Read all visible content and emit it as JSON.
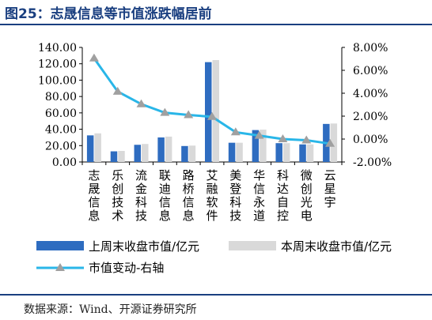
{
  "figure": {
    "title": "图25：志晟信息等市值涨跌幅居前",
    "source": "数据来源：Wind、开源证券研究所"
  },
  "colors": {
    "title": "#1a3f80",
    "bar_last_week": "#2e6cc0",
    "bar_this_week": "#d9d9d9",
    "line": "#29b6e8",
    "marker": "#a0a0a0"
  },
  "chart_data": {
    "type": "bar",
    "categories": [
      "志晟信息",
      "乐创技术",
      "流金科技",
      "联迪信息",
      "路桥信息",
      "艾融软件",
      "美登科技",
      "华信永道",
      "科达自控",
      "微创光电",
      "云星宇"
    ],
    "series": [
      {
        "name": "上周末收盘市值/亿元",
        "type": "bar",
        "axis": "left",
        "color": "#2e6cc0",
        "values": [
          32.5,
          13.0,
          21.0,
          30.0,
          19.5,
          122.0,
          23.5,
          39.0,
          23.0,
          21.5,
          46.5
        ]
      },
      {
        "name": "本周末收盘市值/亿元",
        "type": "bar",
        "axis": "left",
        "color": "#d9d9d9",
        "values": [
          35.0,
          13.5,
          22.0,
          31.0,
          20.0,
          124.5,
          23.5,
          39.5,
          23.0,
          21.5,
          47.0
        ]
      },
      {
        "name": "市值变动-右轴",
        "type": "line",
        "axis": "right",
        "color": "#29b6e8",
        "values": [
          7.05,
          4.15,
          3.05,
          2.3,
          2.1,
          1.95,
          0.6,
          0.3,
          0.0,
          -0.1,
          -0.4
        ]
      }
    ],
    "y_left": {
      "min": 0,
      "max": 140,
      "step": 20,
      "ticks": [
        "0.00",
        "20.00",
        "40.00",
        "60.00",
        "80.00",
        "100.00",
        "120.00",
        "140.00"
      ]
    },
    "y_right": {
      "min": -2,
      "max": 8,
      "step": 2,
      "ticks": [
        "-2.00%",
        "0.00%",
        "2.00%",
        "4.00%",
        "6.00%",
        "8.00%"
      ]
    },
    "grid": false,
    "legend_position": "bottom"
  }
}
